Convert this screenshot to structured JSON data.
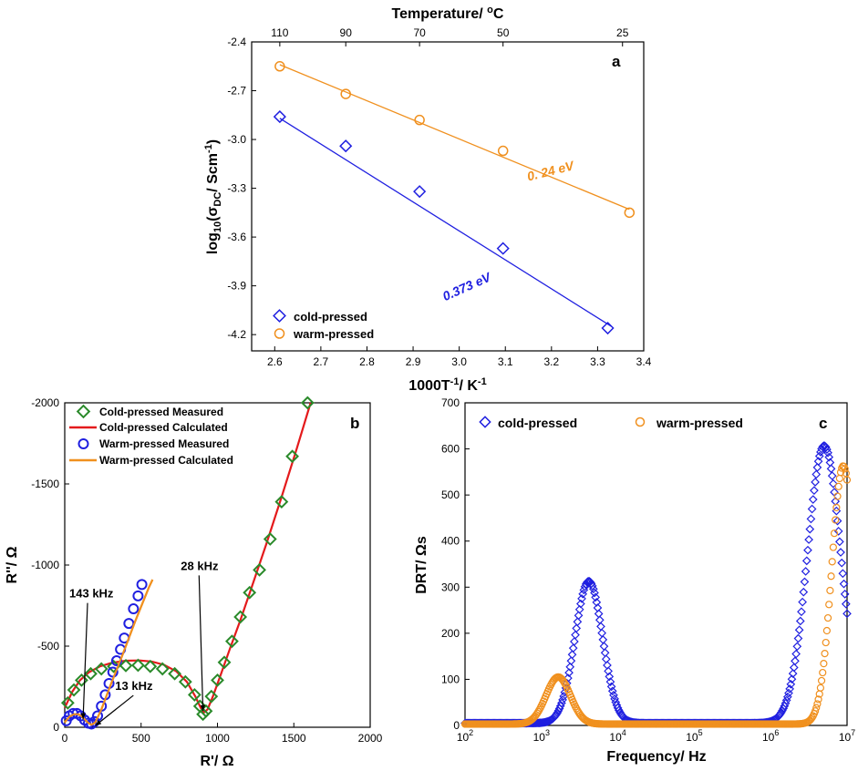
{
  "chart_data": [
    {
      "panel": "a",
      "type": "scatter",
      "xlabel": "1000T⁻¹/ K⁻¹",
      "xlabel_main": "1000T",
      "xlabel_sup": "-1",
      "xlabel_mid": "/ K",
      "xlabel_sup2": "-1",
      "ylabel": "log10(σDC/ Scm-1)",
      "ylabel_main": "log",
      "ylabel_sub": "10",
      "ylabel_sigma": "(σ",
      "ylabel_dc": "DC",
      "ylabel_unit": "/ Scm",
      "ylabel_unit_sup": "-1",
      "ylabel_end": ")",
      "top_axis_label": "Temperature/ °C",
      "top_axis_label_main": "Temperature/ ",
      "top_axis_label_sup": "o",
      "top_axis_label_end": "C",
      "top_ticks": [
        {
          "label": "110",
          "x": 2.611
        },
        {
          "label": "90",
          "x": 2.754
        },
        {
          "label": "70",
          "x": 2.914
        },
        {
          "label": "50",
          "x": 3.095
        },
        {
          "label": "25",
          "x": 3.354
        }
      ],
      "xlim": [
        2.55,
        3.4
      ],
      "ylim": [
        -4.3,
        -2.4
      ],
      "xticks": [
        2.6,
        2.7,
        2.8,
        2.9,
        3.0,
        3.1,
        3.2,
        3.3,
        3.4
      ],
      "xtick_labels": [
        "2.6",
        "2.7",
        "2.8",
        "2.9",
        "3.0",
        "3.1",
        "3.2",
        "3.3",
        "3.4"
      ],
      "yticks": [
        -4.2,
        -3.9,
        -3.6,
        -3.3,
        -3.0,
        -2.7,
        -2.4
      ],
      "ytick_labels": [
        "-4.2",
        "-3.9",
        "-3.6",
        "-3.3",
        "-3.0",
        "-2.7",
        "-2.4"
      ],
      "series": [
        {
          "name": "cold-pressed",
          "color": "#1f1fe0",
          "marker": "diamond",
          "x": [
            2.611,
            2.754,
            2.914,
            3.095,
            3.322
          ],
          "y": [
            -2.86,
            -3.04,
            -3.32,
            -3.67,
            -4.16
          ],
          "fit": {
            "x": [
              2.611,
              3.33
            ],
            "y": [
              -2.87,
              -4.15
            ]
          },
          "annotation": "0.373 eV",
          "annotation_at": [
            3.02,
            -3.93
          ]
        },
        {
          "name": "warm-pressed",
          "color": "#f0901e",
          "marker": "circle",
          "x": [
            2.611,
            2.754,
            2.914,
            3.095,
            3.369
          ],
          "y": [
            -2.55,
            -2.72,
            -2.88,
            -3.07,
            -3.45
          ],
          "fit": {
            "x": [
              2.611,
              3.369
            ],
            "y": [
              -2.54,
              -3.43
            ]
          },
          "annotation": "0. 24 eV",
          "annotation_at": [
            3.2,
            -3.22
          ]
        }
      ],
      "legend": [
        "cold-pressed",
        "warm-pressed"
      ],
      "panel_label": "a"
    },
    {
      "panel": "b",
      "type": "scatter",
      "xlabel": "R'/ Ω",
      "ylabel": "R''/ Ω",
      "xlim": [
        0,
        2000
      ],
      "ylim": [
        0,
        -2000
      ],
      "xticks": [
        0,
        500,
        1000,
        1500,
        2000
      ],
      "xtick_labels": [
        "0",
        "500",
        "1000",
        "1500",
        "2000"
      ],
      "yticks": [
        0,
        -500,
        -1000,
        -1500,
        -2000
      ],
      "ytick_labels": [
        "0",
        "-500",
        "-1000",
        "-1500",
        "-2000"
      ],
      "series": [
        {
          "name": "Cold-pressed Measured",
          "color": "#2a8a2a",
          "marker": "diamond",
          "x": [
            20,
            60,
            110,
            170,
            240,
            320,
            400,
            480,
            560,
            640,
            720,
            790,
            850,
            885,
            905,
            925,
            960,
            1000,
            1045,
            1095,
            1150,
            1210,
            1275,
            1345,
            1420,
            1490,
            1590
          ],
          "y": [
            -150,
            -230,
            -290,
            -330,
            -360,
            -375,
            -380,
            -382,
            -375,
            -360,
            -330,
            -280,
            -200,
            -130,
            -80,
            -100,
            -190,
            -290,
            -400,
            -530,
            -680,
            -830,
            -970,
            -1160,
            -1390,
            -1670,
            -2000
          ]
        },
        {
          "name": "Cold-pressed Calculated",
          "color": "#e41a1c",
          "marker": "line",
          "x": [
            0,
            50,
            100,
            160,
            230,
            310,
            400,
            490,
            570,
            650,
            730,
            800,
            855,
            890,
            910,
            935,
            970,
            1020,
            1080,
            1150,
            1230,
            1320,
            1420,
            1520,
            1610
          ],
          "y": [
            -120,
            -220,
            -290,
            -340,
            -375,
            -398,
            -410,
            -412,
            -405,
            -385,
            -345,
            -280,
            -190,
            -120,
            -90,
            -110,
            -190,
            -320,
            -480,
            -660,
            -880,
            -1130,
            -1420,
            -1720,
            -2000
          ]
        },
        {
          "name": "Warm-pressed Measured",
          "color": "#1f1fe0",
          "marker": "circle",
          "x": [
            10,
            30,
            55,
            80,
            105,
            130,
            155,
            175,
            195,
            215,
            240,
            265,
            290,
            315,
            340,
            365,
            390,
            420,
            450,
            480,
            505
          ],
          "y": [
            -40,
            -70,
            -85,
            -85,
            -70,
            -45,
            -25,
            -20,
            -35,
            -70,
            -130,
            -200,
            -270,
            -340,
            -410,
            -480,
            -550,
            -640,
            -730,
            -810,
            -880
          ]
        },
        {
          "name": "Warm-pressed Calculated",
          "color": "#f0901e",
          "marker": "line",
          "x": [
            0,
            30,
            60,
            90,
            120,
            150,
            175,
            200,
            240,
            300,
            380,
            460,
            550,
            575
          ],
          "y": [
            -30,
            -65,
            -80,
            -80,
            -60,
            -30,
            -15,
            -30,
            -110,
            -260,
            -450,
            -650,
            -860,
            -910
          ]
        }
      ],
      "annotations": [
        {
          "text": "143 kHz",
          "at": [
            30,
            -800
          ],
          "arrow_to": [
            120,
            -50
          ]
        },
        {
          "text": "13 kHz",
          "at": [
            330,
            -230
          ],
          "arrow_to": [
            200,
            -10
          ]
        },
        {
          "text": "28 kHz",
          "at": [
            760,
            -970
          ],
          "arrow_to": [
            905,
            -100
          ]
        }
      ],
      "legend": [
        "Cold-pressed Measured",
        "Cold-pressed Calculated",
        "Warm-pressed Measured",
        "Warm-pressed Calculated"
      ],
      "panel_label": "b"
    },
    {
      "panel": "c",
      "type": "scatter",
      "xlabel": "Frequency/ Hz",
      "ylabel": "DRT/ Ωs",
      "xscale": "log",
      "xlim": [
        2,
        7
      ],
      "ylim": [
        0,
        700
      ],
      "xtick_base": "10",
      "xtick_exps": [
        "2",
        "3",
        "4",
        "5",
        "6",
        "7"
      ],
      "yticks": [
        0,
        100,
        200,
        300,
        400,
        500,
        600,
        700
      ],
      "ytick_labels": [
        "0",
        "100",
        "200",
        "300",
        "400",
        "500",
        "600",
        "700"
      ],
      "series": [
        {
          "name": "cold-pressed",
          "color": "#1f1fe0",
          "marker": "diamond",
          "peaks": [
            {
              "log_f": 3.62,
              "height": 308,
              "width": 0.18
            },
            {
              "log_f": 6.7,
              "height": 602,
              "width": 0.22
            }
          ],
          "x_range": [
            2,
            7
          ],
          "baseline": 5
        },
        {
          "name": "warm-pressed",
          "color": "#f0901e",
          "marker": "circle",
          "peaks": [
            {
              "log_f": 3.22,
              "height": 102,
              "width": 0.16
            },
            {
              "log_f": 6.95,
              "height": 560,
              "width": 0.15
            }
          ],
          "x_range": [
            2,
            7
          ],
          "baseline": 3
        }
      ],
      "legend": [
        "cold-pressed",
        "warm-pressed"
      ],
      "panel_label": "c"
    }
  ]
}
